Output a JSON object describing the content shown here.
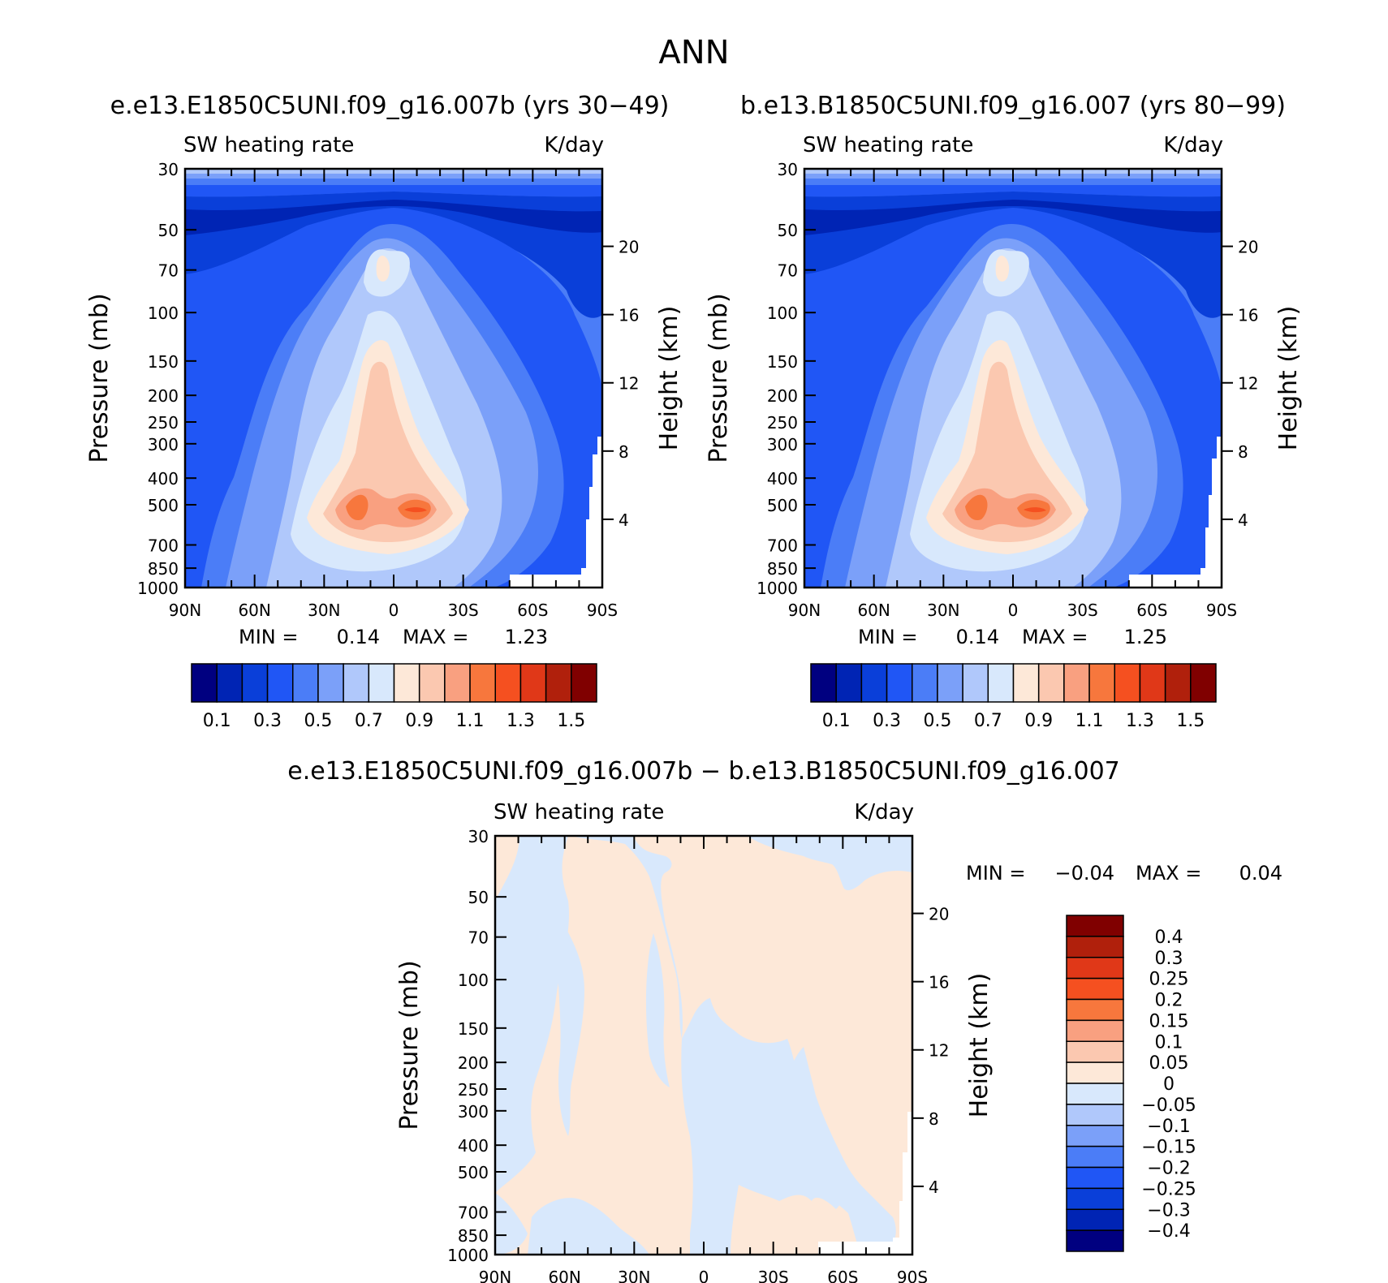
{
  "main_title": "ANN",
  "panels": [
    {
      "title": "e.e13.E1850C5UNI.f09_g16.007b (yrs 30−49)",
      "left_label": "SW heating rate",
      "right_label": "K/day",
      "ylabel": "Pressure (mb)",
      "y2label": "Height (km)",
      "min_label": "MIN =",
      "min_value": "0.14",
      "max_label": "MAX =",
      "max_value": "1.23"
    },
    {
      "title": "b.e13.B1850C5UNI.f09_g16.007 (yrs 80−99)",
      "left_label": "SW heating rate",
      "right_label": "K/day",
      "ylabel": "Pressure (mb)",
      "y2label": "Height (km)",
      "min_label": "MIN =",
      "min_value": "0.14",
      "max_label": "MAX =",
      "max_value": "1.25"
    },
    {
      "title": "e.e13.E1850C5UNI.f09_g16.007b − b.e13.B1850C5UNI.f09_g16.007",
      "left_label": "SW heating rate",
      "right_label": "K/day",
      "ylabel": "Pressure (mb)",
      "y2label": "Height (km)",
      "min_label": "MIN =",
      "min_value": "−0.04",
      "max_label": "MAX =",
      "max_value": "0.04"
    }
  ],
  "axes": {
    "x_ticks": [
      "90N",
      "60N",
      "30N",
      "0",
      "30S",
      "60S",
      "90S"
    ],
    "pressure_ticks": [
      "30",
      "50",
      "70",
      "100",
      "150",
      "200",
      "250",
      "300",
      "400",
      "500",
      "700",
      "850",
      "1000"
    ],
    "height_ticks": [
      "20",
      "16",
      "12",
      "8",
      "4"
    ]
  },
  "colorbar_abs": {
    "colors": [
      "#000080",
      "#0024b4",
      "#0a3fd9",
      "#2056f5",
      "#4b7df7",
      "#7ba0f9",
      "#b0c8fb",
      "#d8e8fc",
      "#fde8d8",
      "#fbc8b0",
      "#f9a080",
      "#f7773d",
      "#f55020",
      "#e03818",
      "#b0200c",
      "#800000"
    ],
    "labels": [
      "0.1",
      "0.3",
      "0.5",
      "0.7",
      "0.9",
      "1.1",
      "1.3",
      "1.5"
    ]
  },
  "colorbar_diff": {
    "colors": [
      "#800000",
      "#b0200c",
      "#e03818",
      "#f55020",
      "#f7773d",
      "#f9a080",
      "#fbc8b0",
      "#fde8d8",
      "#d8e8fc",
      "#b0c8fb",
      "#7ba0f9",
      "#4b7df7",
      "#2056f5",
      "#0a3fd9",
      "#0024b4",
      "#000080"
    ],
    "labels": [
      "0.4",
      "0.3",
      "0.25",
      "0.2",
      "0.15",
      "0.1",
      "0.05",
      "0",
      "−0.05",
      "−0.1",
      "−0.15",
      "−0.2",
      "−0.25",
      "−0.3",
      "−0.4"
    ]
  },
  "chart_data": [
    {
      "type": "heatmap",
      "title": "e.e13.E1850C5UNI.f09_g16.007b (yrs 30−49)",
      "variable": "SW heating rate",
      "units": "K/day",
      "xlabel": "",
      "ylabel": "Pressure (mb)",
      "y2label": "Height (km)",
      "x": [
        "90N",
        "60N",
        "30N",
        "0",
        "30S",
        "60S",
        "90S"
      ],
      "pressure_levels": [
        30,
        50,
        70,
        100,
        150,
        200,
        250,
        300,
        400,
        500,
        700,
        850,
        1000
      ],
      "height_km": [
        20,
        16,
        12,
        8,
        4
      ],
      "ylim": [
        1000,
        30
      ],
      "contour_levels": [
        0.1,
        0.2,
        0.3,
        0.4,
        0.5,
        0.6,
        0.7,
        0.8,
        0.9,
        1.0,
        1.1,
        1.2,
        1.3,
        1.4,
        1.5
      ],
      "min": 0.14,
      "max": 1.23
    },
    {
      "type": "heatmap",
      "title": "b.e13.B1850C5UNI.f09_g16.007 (yrs 80−99)",
      "variable": "SW heating rate",
      "units": "K/day",
      "xlabel": "",
      "ylabel": "Pressure (mb)",
      "y2label": "Height (km)",
      "x": [
        "90N",
        "60N",
        "30N",
        "0",
        "30S",
        "60S",
        "90S"
      ],
      "pressure_levels": [
        30,
        50,
        70,
        100,
        150,
        200,
        250,
        300,
        400,
        500,
        700,
        850,
        1000
      ],
      "height_km": [
        20,
        16,
        12,
        8,
        4
      ],
      "ylim": [
        1000,
        30
      ],
      "contour_levels": [
        0.1,
        0.2,
        0.3,
        0.4,
        0.5,
        0.6,
        0.7,
        0.8,
        0.9,
        1.0,
        1.1,
        1.2,
        1.3,
        1.4,
        1.5
      ],
      "min": 0.14,
      "max": 1.25
    },
    {
      "type": "heatmap",
      "title": "e.e13.E1850C5UNI.f09_g16.007b − b.e13.B1850C5UNI.f09_g16.007",
      "variable": "SW heating rate",
      "units": "K/day",
      "xlabel": "",
      "ylabel": "Pressure (mb)",
      "y2label": "Height (km)",
      "x": [
        "90N",
        "60N",
        "30N",
        "0",
        "30S",
        "60S",
        "90S"
      ],
      "pressure_levels": [
        30,
        50,
        70,
        100,
        150,
        200,
        250,
        300,
        400,
        500,
        700,
        850,
        1000
      ],
      "height_km": [
        20,
        16,
        12,
        8,
        4
      ],
      "ylim": [
        1000,
        30
      ],
      "contour_levels": [
        -0.4,
        -0.3,
        -0.25,
        -0.2,
        -0.15,
        -0.1,
        -0.05,
        0,
        0.05,
        0.1,
        0.15,
        0.2,
        0.25,
        0.3,
        0.4
      ],
      "min": -0.04,
      "max": 0.04
    }
  ]
}
